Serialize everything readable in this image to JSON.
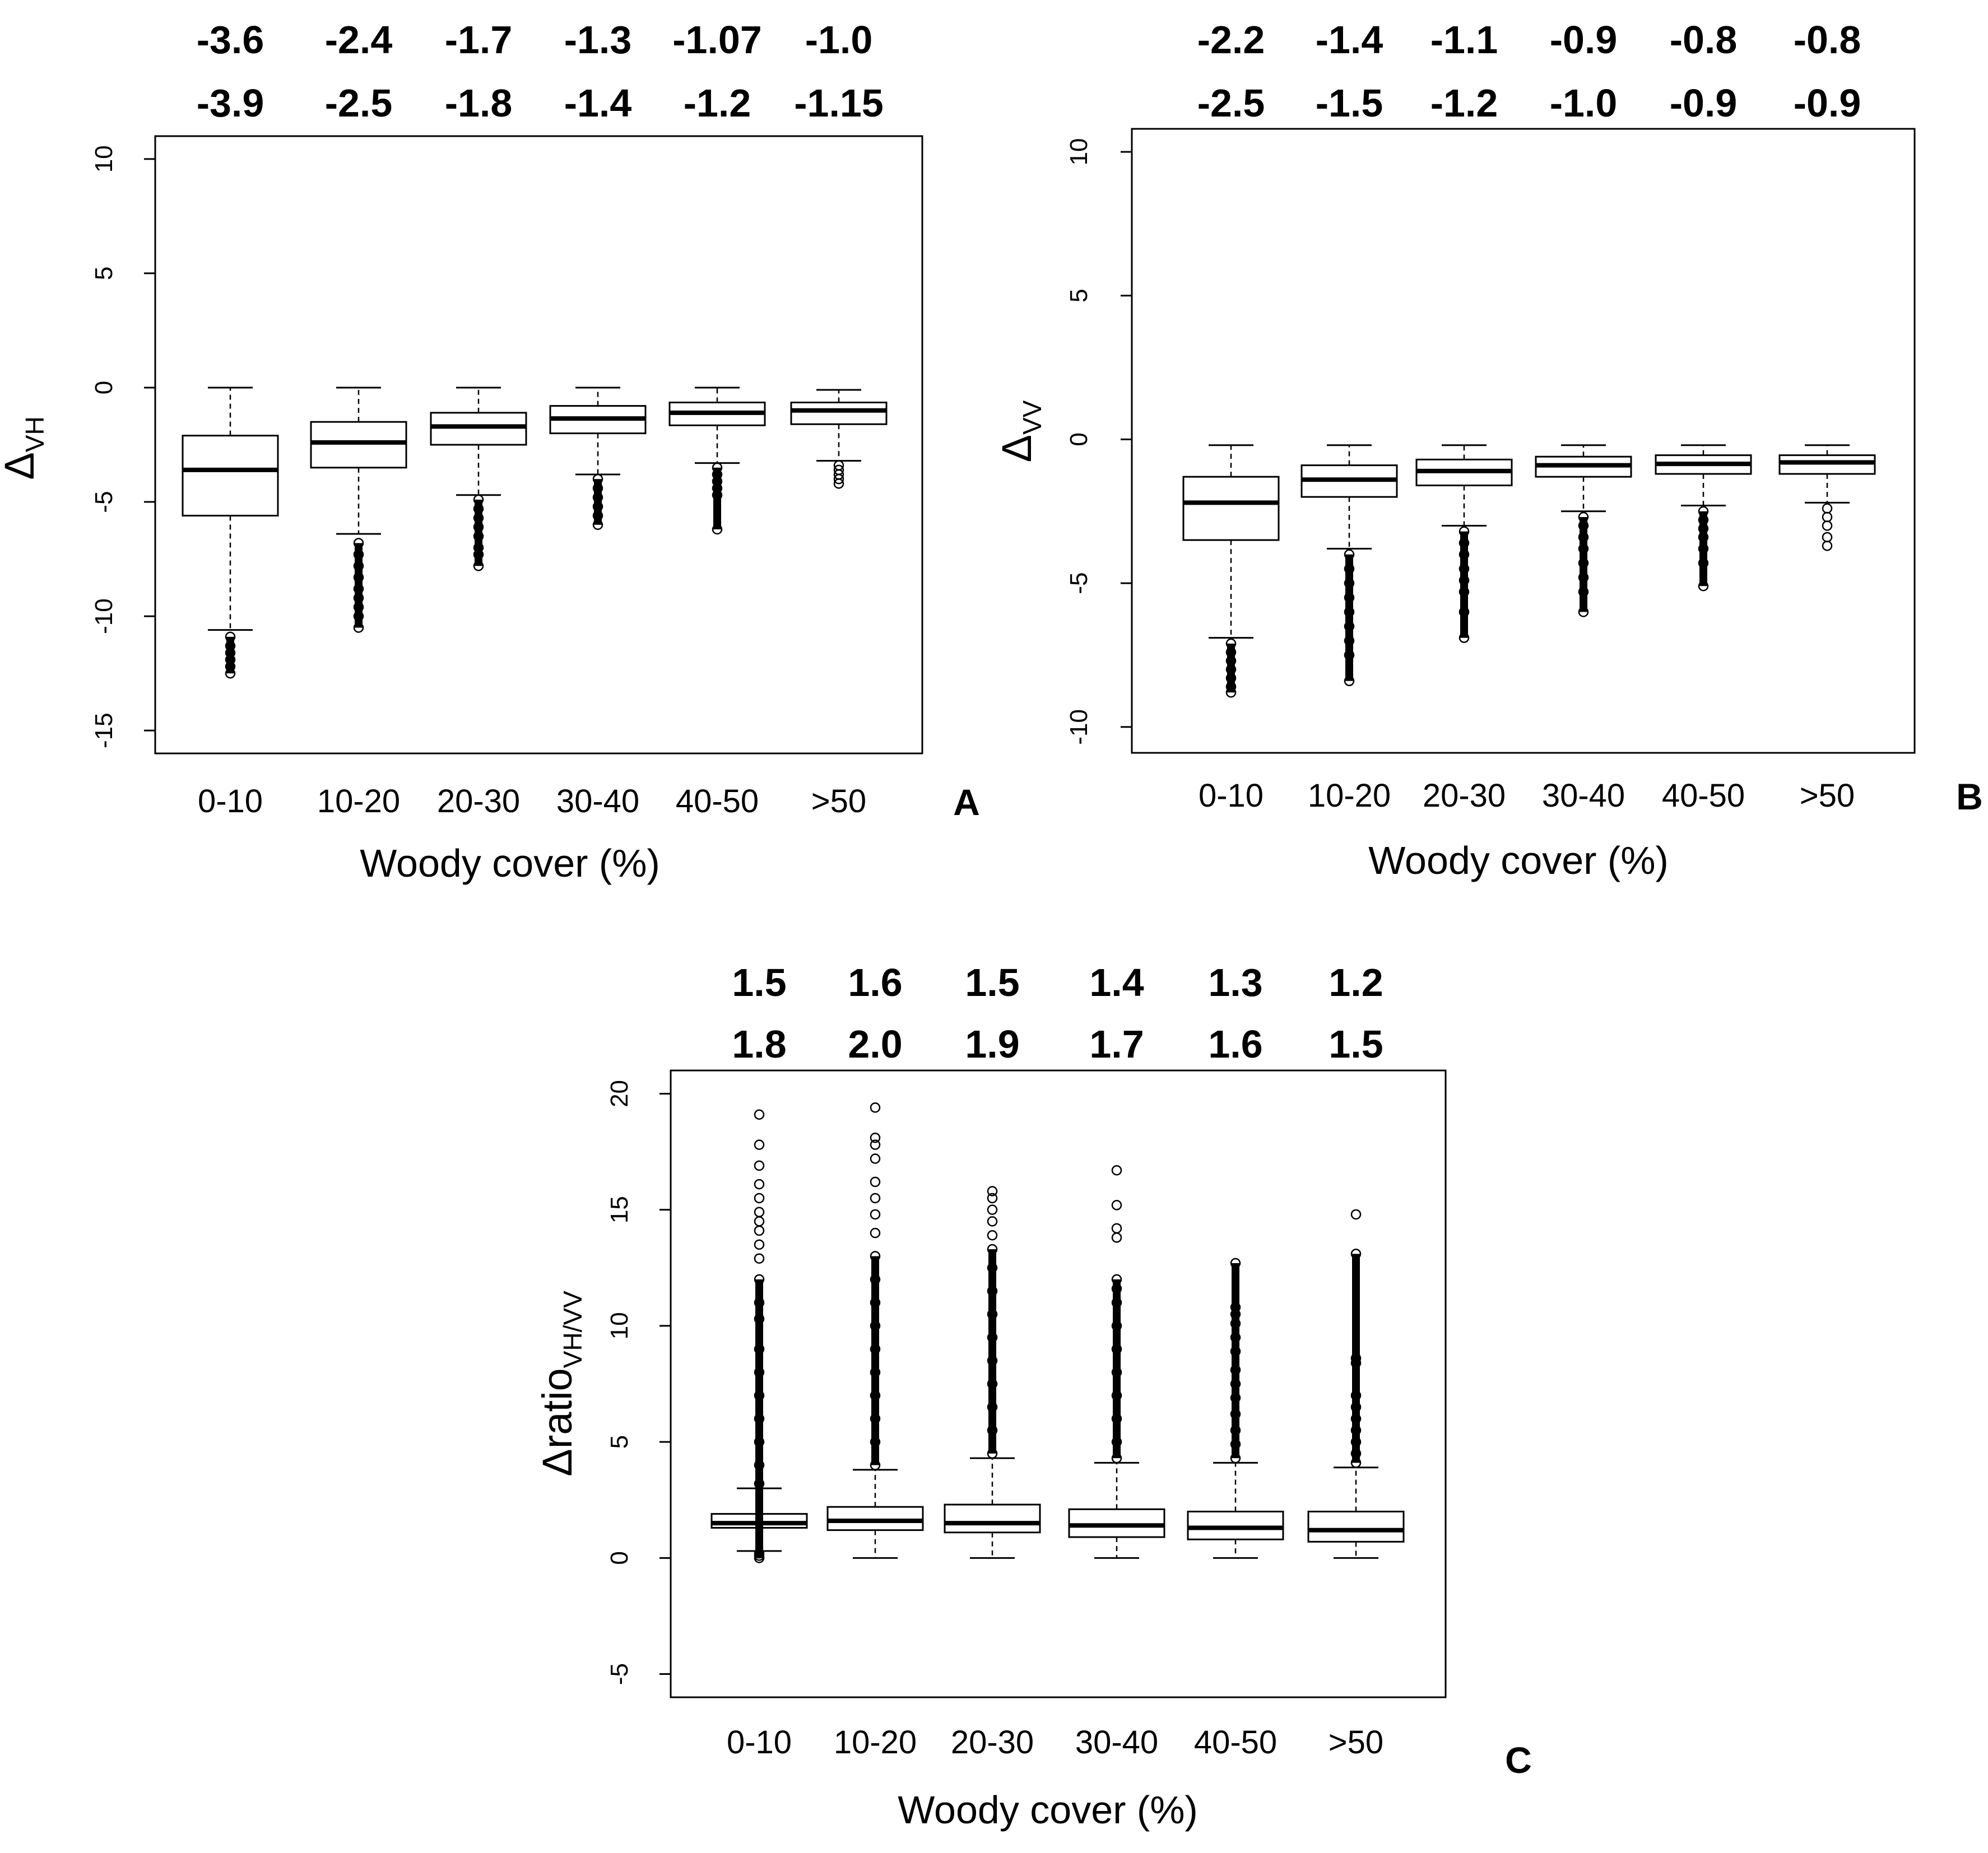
{
  "chart_data": [
    {
      "id": "A",
      "type": "box",
      "panel_label": "A",
      "xlabel": "Woody cover (%)",
      "ylabel_main": "Δ",
      "ylabel_sub": "VH",
      "categories": [
        "0-10",
        "10-20",
        "20-30",
        "30-40",
        "40-50",
        ">50"
      ],
      "yticks": [
        10,
        5,
        0,
        -5,
        -10,
        -15
      ],
      "ylim": [
        -16,
        11
      ],
      "annotations_top": [
        "-3.6",
        "-2.4",
        "-1.7",
        "-1.3",
        "-1.07",
        "-1.0"
      ],
      "annotations_bottom": [
        "-3.9",
        "-2.5",
        "-1.8",
        "-1.4",
        "-1.2",
        "-1.15"
      ],
      "boxes": [
        {
          "q1": -5.6,
          "median": -3.6,
          "q3": -2.1,
          "whisker_low": -10.6,
          "whisker_high": 0.0,
          "outliers": [
            -10.9,
            -11.3,
            -11.6,
            -11.9,
            -12.2,
            -12.5
          ]
        },
        {
          "q1": -3.5,
          "median": -2.4,
          "q3": -1.5,
          "whisker_low": -6.4,
          "whisker_high": 0.0,
          "outliers": [
            -6.8,
            -7.3,
            -7.8,
            -8.3,
            -8.8,
            -9.2,
            -9.6,
            -10.0,
            -10.5
          ]
        },
        {
          "q1": -2.5,
          "median": -1.7,
          "q3": -1.1,
          "whisker_low": -4.7,
          "whisker_high": 0.0,
          "outliers": [
            -4.9,
            -5.3,
            -5.7,
            -6.1,
            -6.5,
            -7.0,
            -7.3,
            -7.8
          ]
        },
        {
          "q1": -2.0,
          "median": -1.35,
          "q3": -0.8,
          "whisker_low": -3.8,
          "whisker_high": 0.0,
          "outliers": [
            -4.0,
            -4.4,
            -4.8,
            -5.2,
            -5.6,
            -6.0
          ]
        },
        {
          "q1": -1.65,
          "median": -1.1,
          "q3": -0.65,
          "whisker_low": -3.3,
          "whisker_high": 0.0,
          "outliers": [
            -3.5,
            -3.8,
            -4.1,
            -4.4,
            -4.7,
            -6.2
          ]
        },
        {
          "q1": -1.6,
          "median": -1.0,
          "q3": -0.65,
          "whisker_low": -3.2,
          "whisker_high": -0.1,
          "outliers": [
            -3.4,
            -3.6,
            -3.8,
            -4.0,
            -4.2
          ]
        }
      ]
    },
    {
      "id": "B",
      "type": "box",
      "panel_label": "B",
      "xlabel": "Woody cover (%)",
      "ylabel_main": "Δ",
      "ylabel_sub": "VV",
      "categories": [
        "0-10",
        "10-20",
        "20-30",
        "30-40",
        "40-50",
        ">50"
      ],
      "yticks": [
        10,
        5,
        0,
        -5,
        -10
      ],
      "ylim": [
        -10.9,
        10.8
      ],
      "annotations_top": [
        "-2.2",
        "-1.4",
        "-1.1",
        "-0.9",
        "-0.8",
        "-0.8"
      ],
      "annotations_bottom": [
        "-2.5",
        "-1.5",
        "-1.2",
        "-1.0",
        "-0.9",
        "-0.9"
      ],
      "boxes": [
        {
          "q1": -3.5,
          "median": -2.2,
          "q3": -1.3,
          "whisker_low": -6.9,
          "whisker_high": -0.2,
          "outliers": [
            -7.1,
            -7.4,
            -7.7,
            -8.0,
            -8.3,
            -8.6,
            -8.8
          ]
        },
        {
          "q1": -2.0,
          "median": -1.4,
          "q3": -0.9,
          "whisker_low": -3.8,
          "whisker_high": -0.2,
          "outliers": [
            -4.0,
            -4.5,
            -5.0,
            -5.5,
            -6.0,
            -6.5,
            -7.0,
            -7.5,
            -8.4
          ]
        },
        {
          "q1": -1.6,
          "median": -1.1,
          "q3": -0.7,
          "whisker_low": -3.0,
          "whisker_high": -0.2,
          "outliers": [
            -3.2,
            -3.6,
            -4.0,
            -4.5,
            -4.9,
            -5.3,
            -6.0,
            -6.9
          ]
        },
        {
          "q1": -1.3,
          "median": -0.9,
          "q3": -0.6,
          "whisker_low": -2.5,
          "whisker_high": -0.2,
          "outliers": [
            -2.7,
            -3.0,
            -3.4,
            -3.8,
            -4.3,
            -4.8,
            -5.3,
            -6.0
          ]
        },
        {
          "q1": -1.2,
          "median": -0.85,
          "q3": -0.55,
          "whisker_low": -2.3,
          "whisker_high": -0.2,
          "outliers": [
            -2.5,
            -2.8,
            -3.1,
            -3.4,
            -3.8,
            -4.3,
            -5.1
          ]
        },
        {
          "q1": -1.2,
          "median": -0.8,
          "q3": -0.55,
          "whisker_low": -2.2,
          "whisker_high": -0.2,
          "outliers": [
            -2.4,
            -2.7,
            -3.0,
            -3.4,
            -3.7
          ]
        }
      ]
    },
    {
      "id": "C",
      "type": "box",
      "panel_label": "C",
      "xlabel": "Woody cover (%)",
      "ylabel_main": "Δratio",
      "ylabel_sub": "VH/VV",
      "categories": [
        "0-10",
        "10-20",
        "20-30",
        "30-40",
        "40-50",
        ">50"
      ],
      "yticks": [
        20,
        15,
        10,
        5,
        0,
        -5
      ],
      "ylim": [
        -6,
        21
      ],
      "annotations_top": [
        "1.5",
        "1.6",
        "1.5",
        "1.4",
        "1.3",
        "1.2"
      ],
      "annotations_bottom": [
        "1.8",
        "2.0",
        "1.9",
        "1.7",
        "1.6",
        "1.5"
      ],
      "boxes": [
        {
          "q1": 1.3,
          "median": 1.5,
          "q3": 1.9,
          "whisker_low": 0.3,
          "whisker_high": 3.0,
          "outliers": [
            0.0,
            0.1,
            0.2,
            3.2,
            4.0,
            5.0,
            6.0,
            7.0,
            8.0,
            9.0,
            10.3,
            11.0,
            12.0,
            12.9,
            13.5,
            14.1,
            14.5,
            14.9,
            15.5,
            16.1,
            16.9,
            17.8,
            19.1
          ]
        },
        {
          "q1": 1.2,
          "median": 1.6,
          "q3": 2.2,
          "whisker_low": 0.0,
          "whisker_high": 3.8,
          "outliers": [
            4.0,
            5.0,
            6.0,
            7.0,
            8.0,
            9.0,
            10.0,
            11.0,
            12.0,
            13.0,
            14.0,
            14.8,
            15.5,
            16.2,
            17.2,
            17.8,
            18.1,
            19.4
          ]
        },
        {
          "q1": 1.1,
          "median": 1.5,
          "q3": 2.3,
          "whisker_low": 0.0,
          "whisker_high": 4.3,
          "outliers": [
            4.5,
            5.5,
            6.5,
            7.5,
            8.5,
            9.5,
            10.5,
            11.5,
            12.5,
            13.3,
            13.9,
            14.5,
            15.0,
            15.5,
            15.8
          ]
        },
        {
          "q1": 0.9,
          "median": 1.4,
          "q3": 2.1,
          "whisker_low": 0.0,
          "whisker_high": 4.1,
          "outliers": [
            4.3,
            5.0,
            6.0,
            7.0,
            8.0,
            9.0,
            10.0,
            11.0,
            11.6,
            12.0,
            13.8,
            14.2,
            15.2,
            16.7
          ]
        },
        {
          "q1": 0.8,
          "median": 1.3,
          "q3": 2.0,
          "whisker_low": 0.0,
          "whisker_high": 4.1,
          "outliers": [
            4.3,
            4.9,
            5.5,
            6.2,
            6.9,
            7.5,
            8.1,
            8.9,
            9.5,
            10.1,
            10.5,
            10.8,
            12.7
          ]
        },
        {
          "q1": 0.7,
          "median": 1.2,
          "q3": 2.0,
          "whisker_low": 0.0,
          "whisker_high": 3.9,
          "outliers": [
            4.1,
            4.5,
            5.0,
            5.5,
            6.0,
            6.5,
            7.0,
            8.4,
            8.6,
            13.1,
            14.8
          ]
        }
      ]
    }
  ]
}
